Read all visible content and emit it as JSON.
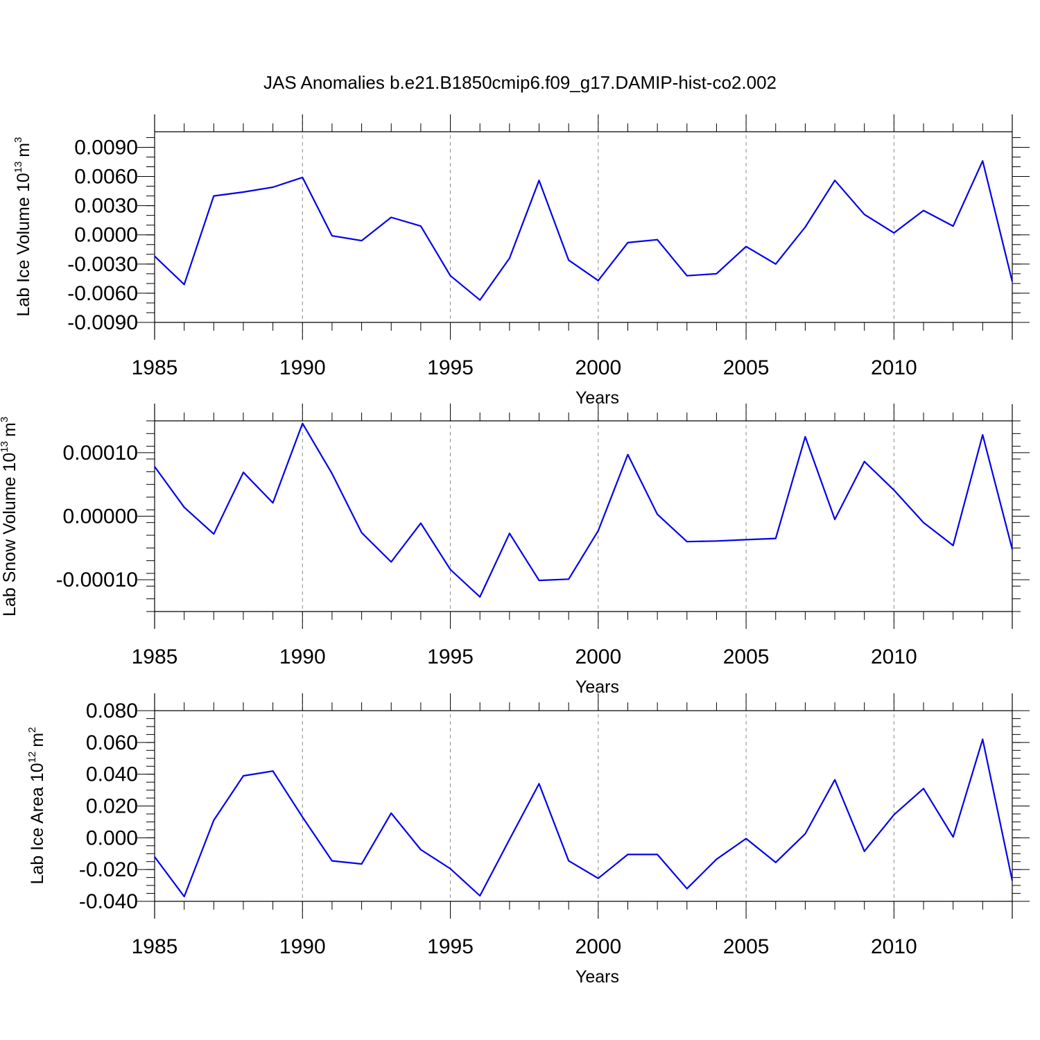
{
  "title": "JAS Anomalies b.e21.B1850cmip6.f09_g17.DAMIP-hist-co2.002",
  "chart_data": [
    {
      "type": "line",
      "ylabel": "Lab Ice Volume 10",
      "ylabel_exp": "13",
      "ylabel_unit": "m",
      "ylabel_unit_exp": "3",
      "xlabel": "Years",
      "xlim": [
        1985,
        2014
      ],
      "ylim": [
        -0.009,
        0.0106
      ],
      "y_ticks": [
        -0.009,
        -0.006,
        -0.003,
        0.0,
        0.003,
        0.006,
        0.009
      ],
      "y_tick_labels": [
        "-0.0090",
        "-0.0060",
        "-0.0030",
        "0.0000",
        "0.0030",
        "0.0060",
        "0.0090"
      ],
      "y_minor_step": 0.001,
      "x_ticks": [
        1985,
        1990,
        1995,
        2000,
        2005,
        2010
      ],
      "x_tick_labels": [
        "1985",
        "1990",
        "1995",
        "2000",
        "2005",
        "2010"
      ],
      "grid_x": true,
      "series_color": "#0000ee",
      "x": [
        1985,
        1986,
        1987,
        1988,
        1989,
        1990,
        1991,
        1992,
        1993,
        1994,
        1995,
        1996,
        1997,
        1998,
        1999,
        2000,
        2001,
        2002,
        2003,
        2004,
        2005,
        2006,
        2007,
        2008,
        2009,
        2010,
        2011,
        2012,
        2013,
        2014
      ],
      "values": [
        -0.0022,
        -0.0051,
        0.004,
        0.0044,
        0.0049,
        0.0059,
        -0.0001,
        -0.0006,
        0.0018,
        0.0009,
        -0.0042,
        -0.0067,
        -0.0024,
        0.0056,
        -0.0026,
        -0.0047,
        -0.0008,
        -0.0005,
        -0.0042,
        -0.004,
        -0.0012,
        -0.003,
        0.0008,
        0.0056,
        0.0021,
        0.0002,
        0.0025,
        0.0009,
        0.0076,
        -0.0048
      ]
    },
    {
      "type": "line",
      "ylabel": "Lab Snow Volume 10",
      "ylabel_exp": "13",
      "ylabel_unit": "m",
      "ylabel_unit_exp": "3",
      "xlabel": "Years",
      "xlim": [
        1985,
        2014
      ],
      "ylim": [
        -0.00015,
        0.00015
      ],
      "y_ticks": [
        -0.0001,
        0.0,
        0.0001
      ],
      "y_tick_labels": [
        "-0.00010",
        "0.00000",
        "0.00010"
      ],
      "y_minor_step": 2e-05,
      "x_ticks": [
        1985,
        1990,
        1995,
        2000,
        2005,
        2010
      ],
      "x_tick_labels": [
        "1985",
        "1990",
        "1995",
        "2000",
        "2005",
        "2010"
      ],
      "grid_x": true,
      "series_color": "#0000ee",
      "x": [
        1985,
        1986,
        1987,
        1988,
        1989,
        1990,
        1991,
        1992,
        1993,
        1994,
        1995,
        1996,
        1997,
        1998,
        1999,
        2000,
        2001,
        2002,
        2003,
        2004,
        2005,
        2006,
        2007,
        2008,
        2009,
        2010,
        2011,
        2012,
        2013,
        2014
      ],
      "values": [
        7.8e-05,
        1.4e-05,
        -2.8e-05,
        6.9e-05,
        2.1e-05,
        0.000146,
        6.7e-05,
        -2.6e-05,
        -7.2e-05,
        -1.1e-05,
        -8.4e-05,
        -0.000127,
        -2.7e-05,
        -0.000101,
        -9.9e-05,
        -2.3e-05,
        9.7e-05,
        3e-06,
        -4e-05,
        -3.9e-05,
        -3.7e-05,
        -3.5e-05,
        0.000125,
        -5e-06,
        8.6e-05,
        4.1e-05,
        -1e-05,
        -4.6e-05,
        0.000128,
        -5.2e-05
      ]
    },
    {
      "type": "line",
      "ylabel": "Lab Ice Area 10",
      "ylabel_exp": "12",
      "ylabel_unit": "m",
      "ylabel_unit_exp": "2",
      "xlabel": "Years",
      "xlim": [
        1985,
        2014
      ],
      "ylim": [
        -0.04,
        0.08
      ],
      "y_ticks": [
        -0.04,
        -0.02,
        0.0,
        0.02,
        0.04,
        0.06,
        0.08
      ],
      "y_tick_labels": [
        "-0.040",
        "-0.020",
        "0.000",
        "0.020",
        "0.040",
        "0.060",
        "0.080"
      ],
      "y_minor_step": 0.005,
      "x_ticks": [
        1985,
        1990,
        1995,
        2000,
        2005,
        2010
      ],
      "x_tick_labels": [
        "1985",
        "1990",
        "1995",
        "2000",
        "2005",
        "2010"
      ],
      "grid_x": true,
      "series_color": "#0000ee",
      "x": [
        1985,
        1986,
        1987,
        1988,
        1989,
        1990,
        1991,
        1992,
        1993,
        1994,
        1995,
        1996,
        1997,
        1998,
        1999,
        2000,
        2001,
        2002,
        2003,
        2004,
        2005,
        2006,
        2007,
        2008,
        2009,
        2010,
        2011,
        2012,
        2013,
        2014
      ],
      "values": [
        -0.012,
        -0.037,
        0.011,
        0.039,
        0.042,
        0.013,
        -0.0145,
        -0.0165,
        0.0155,
        -0.0075,
        -0.0195,
        -0.0365,
        -0.001,
        0.034,
        -0.0145,
        -0.0255,
        -0.0105,
        -0.0105,
        -0.032,
        -0.0135,
        -0.0005,
        -0.0155,
        0.0025,
        0.0365,
        -0.0085,
        0.0145,
        0.031,
        0.0005,
        0.062,
        -0.027
      ]
    }
  ]
}
